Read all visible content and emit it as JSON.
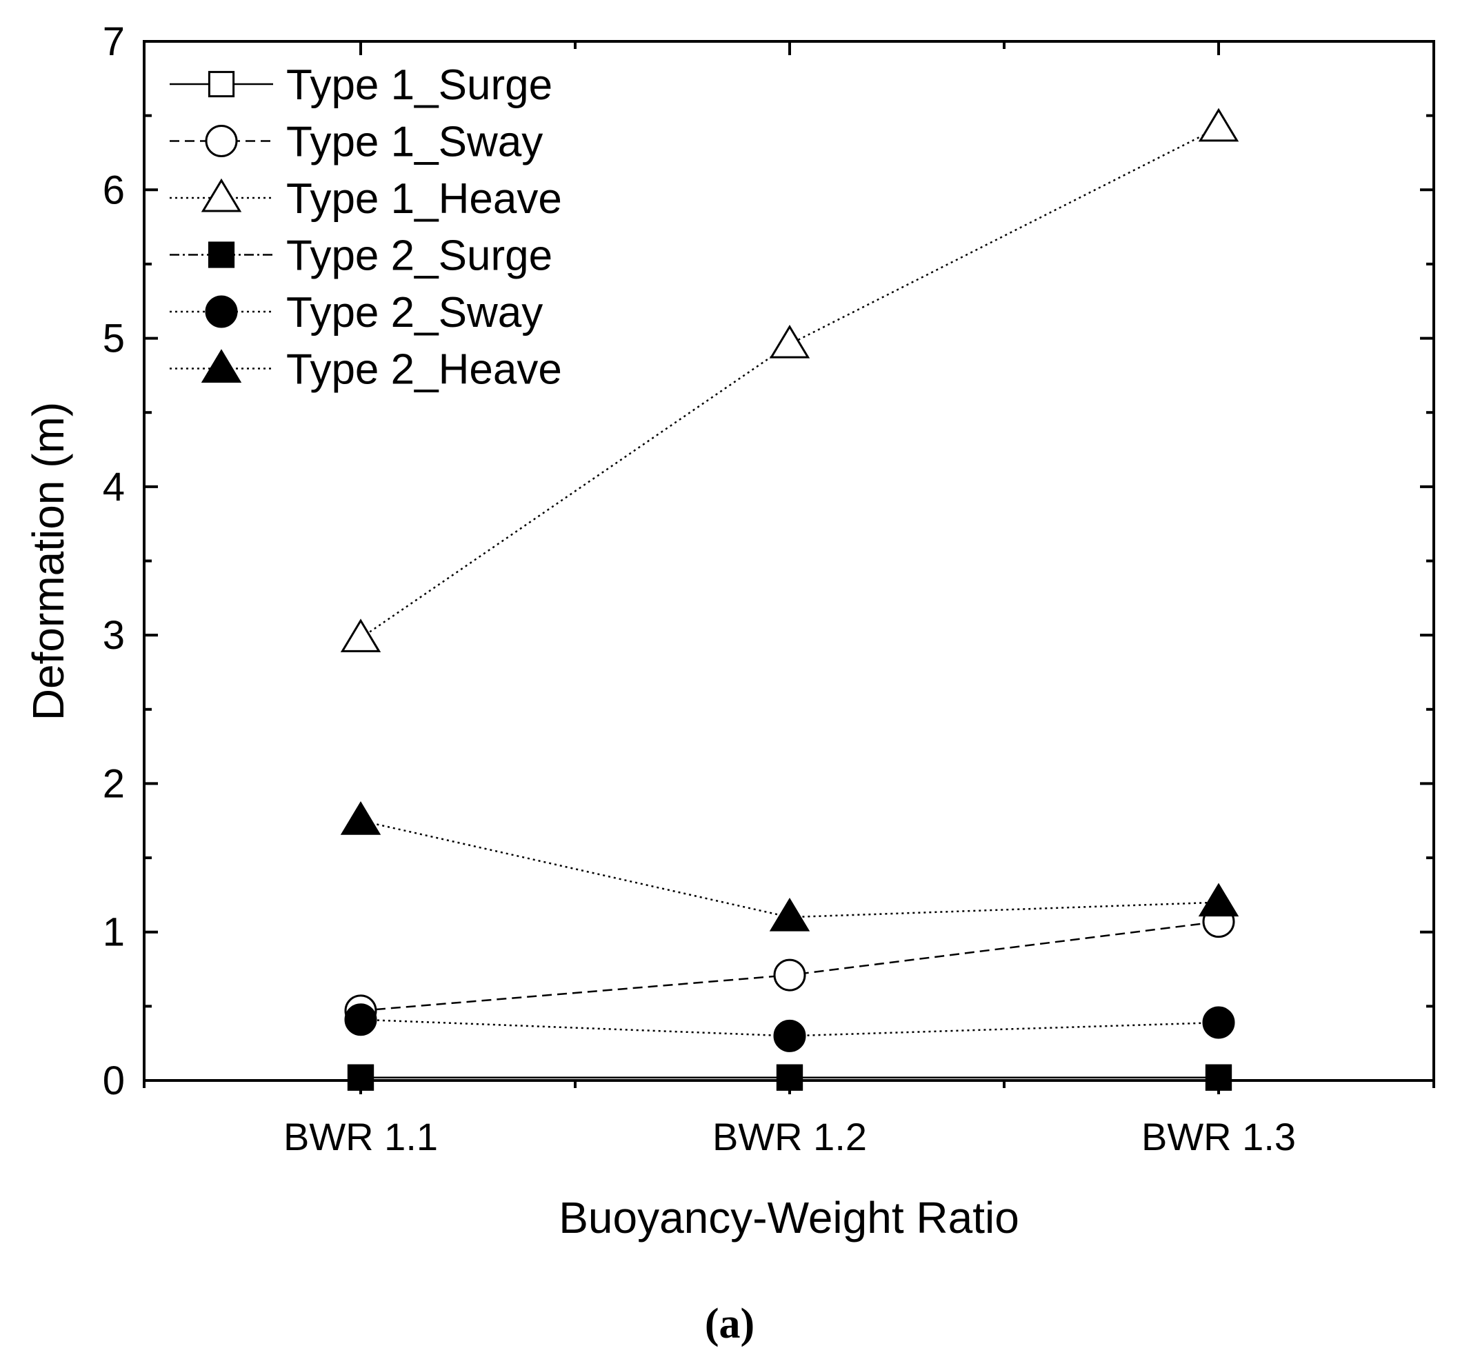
{
  "chart_data": {
    "type": "line",
    "title": "",
    "xlabel": "Buoyancy-Weight Ratio",
    "ylabel": "Deformation (m)",
    "categories": [
      "BWR 1.1",
      "BWR 1.2",
      "BWR 1.3"
    ],
    "ylim": [
      0,
      7
    ],
    "yticks": [
      "0",
      "1",
      "2",
      "3",
      "4",
      "5",
      "6",
      "7"
    ],
    "grid": false,
    "legend_position": "top-left",
    "series": [
      {
        "name": "Type 1_Surge",
        "values": [
          0.02,
          0.02,
          0.02
        ],
        "marker": "square",
        "filled": false,
        "line": "solid"
      },
      {
        "name": "Type 1_Sway",
        "values": [
          0.47,
          0.71,
          1.07
        ],
        "marker": "circle",
        "filled": false,
        "line": "dashed"
      },
      {
        "name": "Type 1_Heave",
        "values": [
          2.98,
          4.96,
          6.42
        ],
        "marker": "triangle",
        "filled": false,
        "line": "dotted"
      },
      {
        "name": "Type 2_Surge",
        "values": [
          0.02,
          0.02,
          0.02
        ],
        "marker": "square",
        "filled": true,
        "line": "dashdot"
      },
      {
        "name": "Type 2_Sway",
        "values": [
          0.41,
          0.3,
          0.39
        ],
        "marker": "circle",
        "filled": true,
        "line": "dotted"
      },
      {
        "name": "Type 2_Heave",
        "values": [
          1.75,
          1.1,
          1.2
        ],
        "marker": "triangle",
        "filled": true,
        "line": "dotted"
      }
    ]
  },
  "caption": "(a)",
  "colors": {
    "ink": "#000000",
    "background": "#ffffff"
  }
}
